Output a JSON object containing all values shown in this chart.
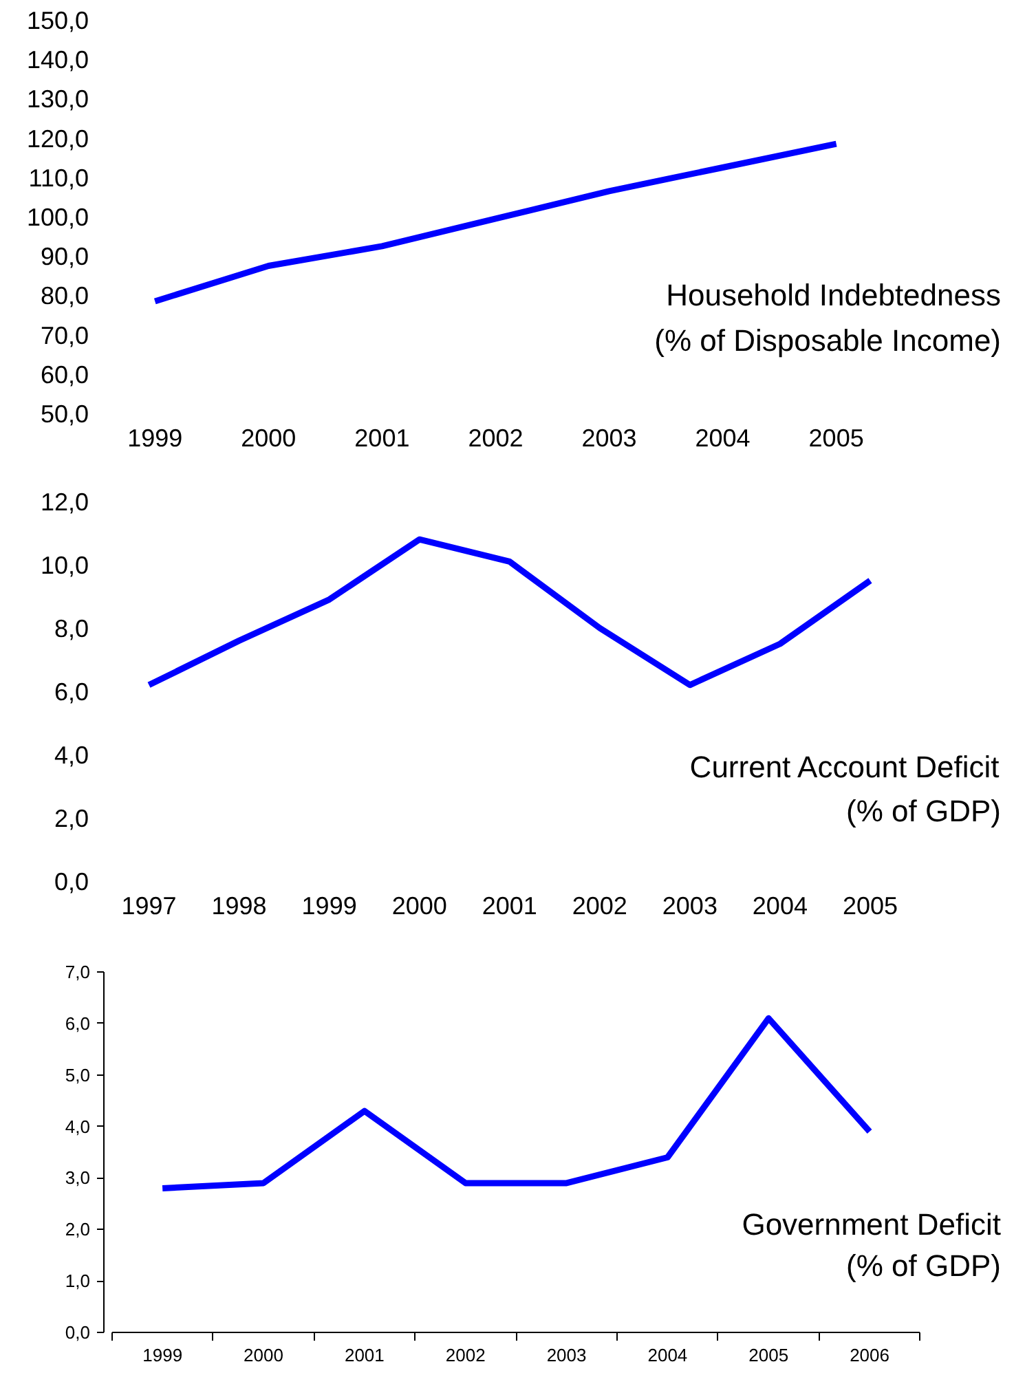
{
  "chart_data": [
    {
      "type": "line",
      "categories": [
        "1999",
        "2000",
        "2001",
        "2002",
        "2003",
        "2004",
        "2005"
      ],
      "series": [
        {
          "color": "#0000ff",
          "values": [
            78.5,
            87.5,
            92.5,
            99.5,
            106.5,
            112.5,
            118.5
          ]
        }
      ],
      "ylim": [
        50,
        150
      ],
      "yticks": [
        {
          "value": 50,
          "label": "50,0"
        },
        {
          "value": 60,
          "label": "60,0"
        },
        {
          "value": 70,
          "label": "70,0"
        },
        {
          "value": 80,
          "label": "80,0"
        },
        {
          "value": 90,
          "label": "90,0"
        },
        {
          "value": 100,
          "label": "100,0"
        },
        {
          "value": 110,
          "label": "110,0"
        },
        {
          "value": 120,
          "label": "120,0"
        },
        {
          "value": 130,
          "label": "130,0"
        },
        {
          "value": 140,
          "label": "140,0"
        },
        {
          "value": 150,
          "label": "150,0"
        }
      ],
      "annotations": [
        "Household Indebtedness",
        "(% of Disposable Income)"
      ],
      "grid": false,
      "line_style": "solid",
      "marker": "none"
    },
    {
      "type": "line",
      "categories": [
        "1997",
        "1998",
        "1999",
        "2000",
        "2001",
        "2002",
        "2003",
        "2004",
        "2005"
      ],
      "series": [
        {
          "color": "#0000ff",
          "values": [
            6.2,
            7.6,
            8.9,
            10.8,
            10.1,
            8.0,
            6.2,
            7.5,
            9.5
          ]
        }
      ],
      "ylim": [
        0,
        12
      ],
      "yticks": [
        {
          "value": 0,
          "label": "0,0"
        },
        {
          "value": 2,
          "label": "2,0"
        },
        {
          "value": 4,
          "label": "4,0"
        },
        {
          "value": 6,
          "label": "6,0"
        },
        {
          "value": 8,
          "label": "8,0"
        },
        {
          "value": 10,
          "label": "10,0"
        },
        {
          "value": 12,
          "label": "12,0"
        }
      ],
      "annotations": [
        "Current Account Deficit",
        "(% of GDP)"
      ],
      "grid": false,
      "line_style": "solid",
      "marker": "none"
    },
    {
      "type": "line",
      "categories": [
        "1999",
        "2000",
        "2001",
        "2002",
        "2003",
        "2004",
        "2005",
        "2006"
      ],
      "series": [
        {
          "color": "#0000ff",
          "values": [
            2.8,
            2.9,
            4.3,
            2.9,
            2.9,
            3.4,
            6.1,
            3.9
          ]
        }
      ],
      "ylim": [
        0,
        7
      ],
      "yticks": [
        {
          "value": 0,
          "label": "0,0"
        },
        {
          "value": 1,
          "label": "1,0"
        },
        {
          "value": 2,
          "label": "2,0"
        },
        {
          "value": 3,
          "label": "3,0"
        },
        {
          "value": 4,
          "label": "4,0"
        },
        {
          "value": 5,
          "label": "5,0"
        },
        {
          "value": 6,
          "label": "6,0"
        },
        {
          "value": 7,
          "label": "7,0"
        }
      ],
      "annotations": [
        "Government Deficit",
        "(% of GDP)"
      ],
      "grid": false,
      "line_style": "solid",
      "marker": "none"
    }
  ]
}
